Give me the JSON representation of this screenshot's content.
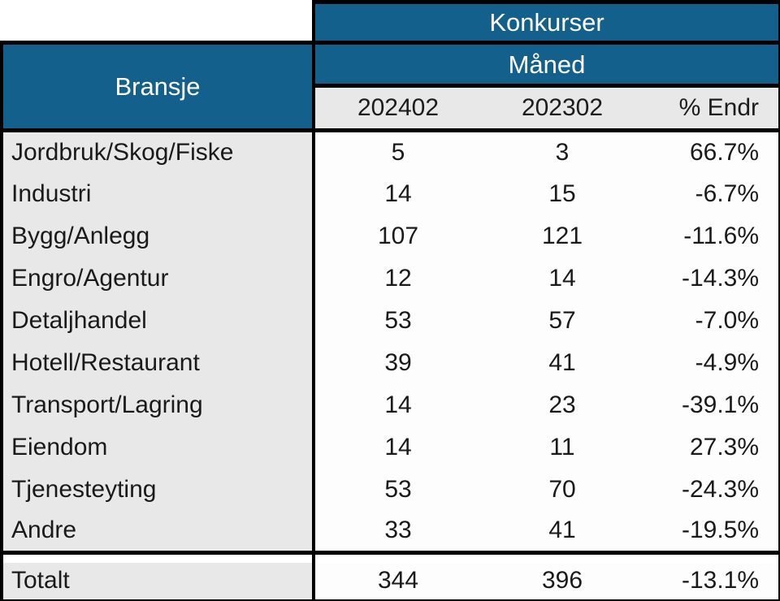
{
  "table": {
    "title": "Konkurser",
    "group_header": "Måned",
    "row_header": "Bransje",
    "columns": [
      "202402",
      "202302",
      "% Endr"
    ],
    "rows": [
      {
        "label": "Jordbruk/Skog/Fiske",
        "v1": "5",
        "v2": "3",
        "pct": "66.7%"
      },
      {
        "label": "Industri",
        "v1": "14",
        "v2": "15",
        "pct": "-6.7%"
      },
      {
        "label": "Bygg/Anlegg",
        "v1": "107",
        "v2": "121",
        "pct": "-11.6%"
      },
      {
        "label": "Engro/Agentur",
        "v1": "12",
        "v2": "14",
        "pct": "-14.3%"
      },
      {
        "label": "Detaljhandel",
        "v1": "53",
        "v2": "57",
        "pct": "-7.0%"
      },
      {
        "label": "Hotell/Restaurant",
        "v1": "39",
        "v2": "41",
        "pct": "-4.9%"
      },
      {
        "label": "Transport/Lagring",
        "v1": "14",
        "v2": "23",
        "pct": "-39.1%"
      },
      {
        "label": "Eiendom",
        "v1": "14",
        "v2": "11",
        "pct": "27.3%"
      },
      {
        "label": "Tjenesteyting",
        "v1": "53",
        "v2": "70",
        "pct": "-24.3%"
      },
      {
        "label": "Andre",
        "v1": "33",
        "v2": "41",
        "pct": "-19.5%"
      }
    ],
    "total": {
      "label": "Totalt",
      "v1": "344",
      "v2": "396",
      "pct": "-13.1%"
    }
  },
  "colors": {
    "header_blue": "#14608C",
    "label_gray": "#e8e8e8",
    "cell_white": "#fdfdfd",
    "border_black": "#000000",
    "header_text": "#ffffff",
    "body_text": "#1a1a1a"
  },
  "chart_data": {
    "type": "table",
    "title": "Konkurser",
    "group_header": "Måned",
    "row_dimension": "Bransje",
    "columns": [
      "202402",
      "202302",
      "% Endr"
    ],
    "rows": [
      [
        "Jordbruk/Skog/Fiske",
        5,
        3,
        "66.7%"
      ],
      [
        "Industri",
        14,
        15,
        "-6.7%"
      ],
      [
        "Bygg/Anlegg",
        107,
        121,
        "-11.6%"
      ],
      [
        "Engro/Agentur",
        12,
        14,
        "-14.3%"
      ],
      [
        "Detaljhandel",
        53,
        57,
        "-7.0%"
      ],
      [
        "Hotell/Restaurant",
        39,
        41,
        "-4.9%"
      ],
      [
        "Transport/Lagring",
        14,
        23,
        "-39.1%"
      ],
      [
        "Eiendom",
        14,
        11,
        "27.3%"
      ],
      [
        "Tjenesteyting",
        53,
        70,
        "-24.3%"
      ],
      [
        "Andre",
        33,
        41,
        "-19.5%"
      ]
    ],
    "total": [
      "Totalt",
      344,
      396,
      "-13.1%"
    ]
  }
}
